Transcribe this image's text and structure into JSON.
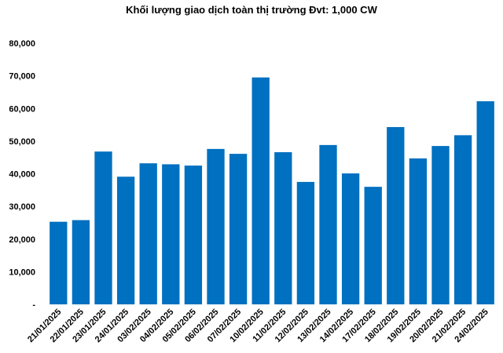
{
  "chart_data": {
    "type": "bar",
    "title": "Khối lượng giao dịch toàn thị trường Đvt: 1,000 CW",
    "xlabel": "",
    "ylabel": "",
    "ylim": [
      0,
      80000
    ],
    "yticks": [
      "-",
      "10,000",
      "20,000",
      "30,000",
      "40,000",
      "50,000",
      "60,000",
      "70,000",
      "80,000"
    ],
    "ytick_values": [
      0,
      10000,
      20000,
      30000,
      40000,
      50000,
      60000,
      70000,
      80000
    ],
    "grid": false,
    "legend": "none",
    "bar_color": "#0070C0",
    "categories": [
      "21/01/2025",
      "22/01/2025",
      "23/01/2025",
      "24/01/2025",
      "03/02/2025",
      "04/02/2025",
      "05/02/2025",
      "06/02/2025",
      "07/02/2025",
      "10/02/2025",
      "11/02/2025",
      "12/02/2025",
      "13/02/2025",
      "14/02/2025",
      "17/02/2025",
      "18/02/2025",
      "19/02/2025",
      "20/02/2025",
      "21/02/2025",
      "24/02/2025"
    ],
    "values": [
      25300,
      25800,
      46800,
      39100,
      43200,
      42900,
      42500,
      47600,
      46100,
      69500,
      46600,
      37500,
      48800,
      40100,
      36000,
      54300,
      44700,
      48500,
      51800,
      62200
    ]
  }
}
